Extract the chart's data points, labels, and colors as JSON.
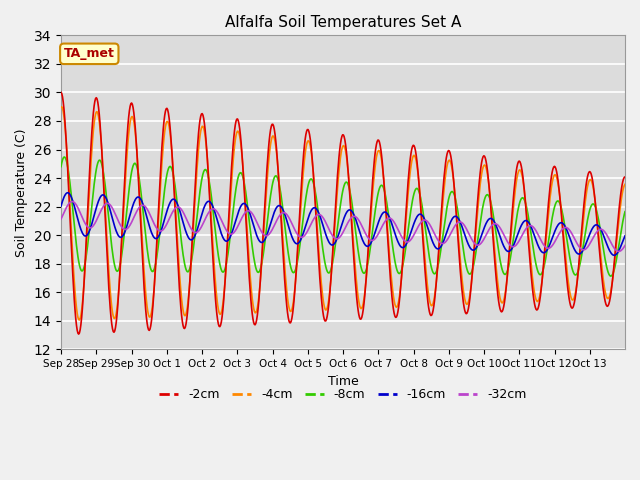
{
  "title": "Alfalfa Soil Temperatures Set A",
  "xlabel": "Time",
  "ylabel": "Soil Temperature (C)",
  "ylim": [
    12,
    34
  ],
  "yticks": [
    12,
    14,
    16,
    18,
    20,
    22,
    24,
    26,
    28,
    30,
    32,
    34
  ],
  "colors": {
    "-2cm": "#dd0000",
    "-4cm": "#ff8800",
    "-8cm": "#33cc00",
    "-16cm": "#0000cc",
    "-32cm": "#bb44cc"
  },
  "annotation_text": "TA_met",
  "annotation_color": "#aa0000",
  "annotation_bg": "#ffffcc",
  "annotation_border": "#cc8800",
  "fig_bg": "#f0f0f0",
  "plot_bg": "#dcdcdc",
  "n_days": 16,
  "tick_labels": [
    "Sep 28",
    "Sep 29",
    "Sep 30",
    "Oct 1",
    "Oct 2",
    "Oct 3",
    "Oct 4",
    "Oct 5",
    "Oct 6",
    "Oct 7",
    "Oct 8",
    "Oct 9",
    "Oct 10",
    "Oct 11",
    "Oct 12",
    "Oct 13"
  ],
  "line_width": 1.2
}
